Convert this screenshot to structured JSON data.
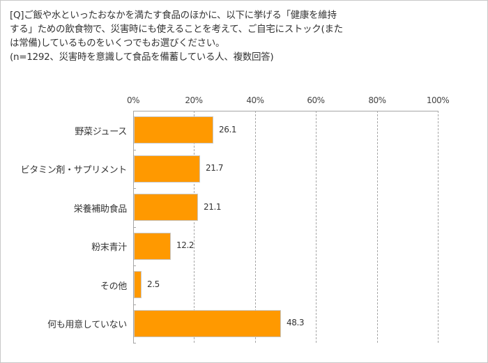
{
  "question": {
    "lines": [
      "[Q]ご飯や水といったおなかを満たす食品のほかに、以下に挙げる「健康を維持",
      "する」ための飲食物で、災害時にも使えることを考えて、ご自宅にストック(また",
      "は常備)しているものをいくつでもお選びください。",
      "(n=1292、災害時を意識して食品を備蓄している人、複数回答)"
    ]
  },
  "chart_data": {
    "type": "bar",
    "orientation": "horizontal",
    "title": "[Q]ご飯や水といったおなかを満たす食品のほかに、以下に挙げる「健康を維持する」ための飲食物で、災害時にも使えることを考えて、ご自宅にストック(または常備)しているものをいくつでもお選びください。",
    "subtitle": "(n=1292、災害時を意識して食品を備蓄している人、複数回答)",
    "categories": [
      "野菜ジュース",
      "ビタミン剤・サプリメント",
      "栄養補助食品",
      "粉末青汁",
      "その他",
      "何も用意していない"
    ],
    "values": [
      26.1,
      21.7,
      21.1,
      12.2,
      2.5,
      48.3
    ],
    "value_labels": [
      "26.1",
      "21.7",
      "21.1",
      "12.2",
      "2.5",
      "48.3"
    ],
    "xlabel": "",
    "ylabel": "",
    "xlim": [
      0,
      100
    ],
    "x_ticks": [
      "0%",
      "20%",
      "40%",
      "60%",
      "80%",
      "100%"
    ],
    "x_axis_position": "top",
    "grid": true,
    "grid_style": "dashed",
    "legend": null,
    "bar_color": "#ff9900"
  }
}
